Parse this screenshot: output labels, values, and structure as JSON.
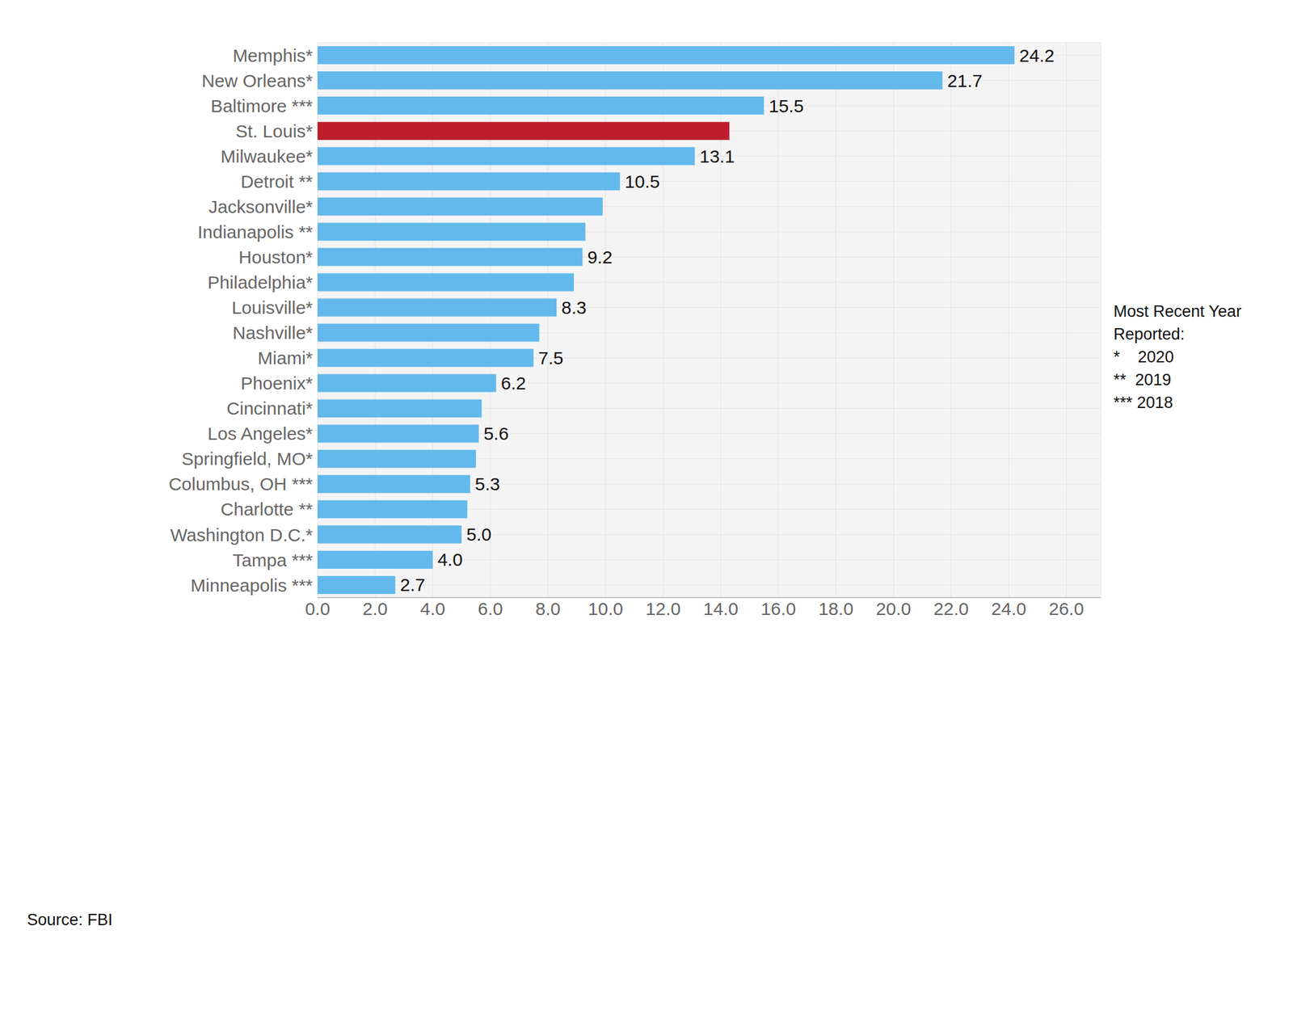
{
  "chart_data": {
    "type": "bar",
    "orientation": "horizontal",
    "categories": [
      "Memphis*",
      "New Orleans*",
      "Baltimore ***",
      "St. Louis*",
      "Milwaukee*",
      "Detroit **",
      "Jacksonville*",
      "Indianapolis **",
      "Houston*",
      "Philadelphia*",
      "Louisville*",
      "Nashville*",
      "Miami*",
      "Phoenix*",
      "Cincinnati*",
      "Los Angeles*",
      "Springfield, MO*",
      "Columbus, OH ***",
      "Charlotte **",
      "Washington D.C.*",
      "Tampa ***",
      "Minneapolis ***"
    ],
    "values": [
      24.2,
      21.7,
      15.5,
      14.3,
      13.1,
      10.5,
      9.9,
      9.3,
      9.2,
      8.9,
      8.3,
      7.7,
      7.5,
      6.2,
      5.7,
      5.6,
      5.5,
      5.3,
      5.2,
      5.0,
      4.0,
      2.7
    ],
    "value_labels": [
      "24.2",
      "21.7",
      "15.5",
      null,
      "13.1",
      "10.5",
      null,
      null,
      "9.2",
      null,
      "8.3",
      null,
      "7.5",
      "6.2",
      null,
      "5.6",
      null,
      "5.3",
      null,
      "5.0",
      "4.0",
      "2.7"
    ],
    "colors": [
      "#63b9ec",
      "#63b9ec",
      "#63b9ec",
      "#be1e2d",
      "#63b9ec",
      "#63b9ec",
      "#63b9ec",
      "#63b9ec",
      "#63b9ec",
      "#63b9ec",
      "#63b9ec",
      "#63b9ec",
      "#63b9ec",
      "#63b9ec",
      "#63b9ec",
      "#63b9ec",
      "#63b9ec",
      "#63b9ec",
      "#63b9ec",
      "#63b9ec",
      "#63b9ec",
      "#63b9ec"
    ],
    "data_labels": true,
    "grid": true,
    "xlim": [
      0,
      27.2
    ],
    "xticks": [
      {
        "value": 0,
        "label": "0.0"
      },
      {
        "value": 2,
        "label": "2.0"
      },
      {
        "value": 4,
        "label": "4.0"
      },
      {
        "value": 6,
        "label": "6.0"
      },
      {
        "value": 8,
        "label": "8.0"
      },
      {
        "value": 10,
        "label": "10.0"
      },
      {
        "value": 12,
        "label": "12.0"
      },
      {
        "value": 14,
        "label": "14.0"
      },
      {
        "value": 16,
        "label": "16.0"
      },
      {
        "value": 18,
        "label": "18.0"
      },
      {
        "value": 20,
        "label": "20.0"
      },
      {
        "value": 22,
        "label": "22.0"
      },
      {
        "value": 24,
        "label": "24.0"
      },
      {
        "value": 26,
        "label": "26.0"
      }
    ],
    "annotations": [
      "Most Recent Year",
      "Reported:",
      "*    2020",
      "**  2019",
      "*** 2018"
    ],
    "source": "Source: FBI"
  }
}
